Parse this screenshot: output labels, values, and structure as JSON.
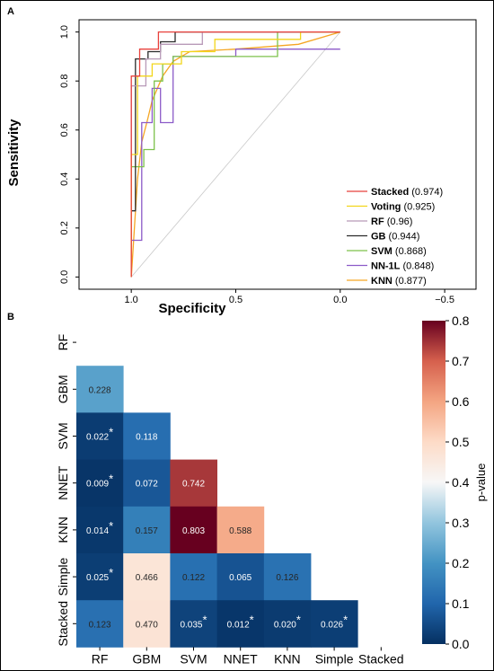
{
  "chart_data": [
    {
      "type": "line",
      "panel": "A",
      "xlabel": "Specificity",
      "ylabel": "Sensitivity",
      "xlim": [
        1.25,
        -0.65
      ],
      "ylim": [
        -0.05,
        1.05
      ],
      "x_ticks": [
        {
          "value": 1.0,
          "label": "1.0"
        },
        {
          "value": 0.5,
          "label": "0.5"
        },
        {
          "value": 0.0,
          "label": "0.0"
        },
        {
          "value": -0.5,
          "label": "−0.5"
        }
      ],
      "y_ticks": [
        {
          "value": 0.0,
          "label": "0.0"
        },
        {
          "value": 0.2,
          "label": "0.2"
        },
        {
          "value": 0.4,
          "label": "0.4"
        },
        {
          "value": 0.6,
          "label": "0.6"
        },
        {
          "value": 0.8,
          "label": "0.8"
        },
        {
          "value": 1.0,
          "label": "1.0"
        }
      ],
      "reference_line": {
        "x": [
          1.0,
          0.0
        ],
        "y": [
          0.0,
          1.0
        ],
        "color": "#c8c8c8"
      },
      "legend_position": "bottom-right",
      "series": [
        {
          "name": "Stacked",
          "auc": "(0.974)",
          "color": "#e8413c",
          "x": [
            1,
            1,
            0.96,
            0.96,
            0.87,
            0.87,
            0.8,
            0.8,
            0
          ],
          "y": [
            0,
            0.82,
            0.82,
            0.93,
            0.93,
            1,
            1,
            1,
            1
          ]
        },
        {
          "name": "Voting",
          "auc": "(0.925)",
          "color": "#f2d61b",
          "x": [
            1,
            1,
            0.97,
            0.97,
            0.9,
            0.9,
            0.76,
            0.76,
            0.6,
            0.6,
            0.19,
            0.19,
            0
          ],
          "y": [
            0,
            0.5,
            0.5,
            0.82,
            0.82,
            0.87,
            0.87,
            0.92,
            0.92,
            0.97,
            0.97,
            1,
            1
          ]
        },
        {
          "name": "RF",
          "auc": "(0.96)",
          "color": "#b89ab8",
          "x": [
            1,
            1,
            0.93,
            0.93,
            0.86,
            0.86,
            0.66,
            0.66,
            0
          ],
          "y": [
            0,
            0.78,
            0.78,
            0.89,
            0.89,
            0.95,
            0.95,
            1,
            1
          ]
        },
        {
          "name": "GB",
          "auc": "(0.944)",
          "color": "#2b2b2b",
          "x": [
            1,
            1,
            0.98,
            0.98,
            0.92,
            0.92,
            0.86,
            0.86,
            0.79,
            0.79,
            0
          ],
          "y": [
            0,
            0.27,
            0.27,
            0.89,
            0.89,
            0.92,
            0.92,
            0.96,
            0.96,
            1,
            1
          ]
        },
        {
          "name": "SVM",
          "auc": "(0.868)",
          "color": "#7dc24b",
          "x": [
            1,
            1,
            0.94,
            0.94,
            0.89,
            0.89,
            0.85,
            0.85,
            0.8,
            0.8,
            0.3,
            0.3,
            0
          ],
          "y": [
            0,
            0.45,
            0.45,
            0.52,
            0.52,
            0.8,
            0.8,
            0.87,
            0.87,
            0.9,
            0.9,
            1,
            1
          ]
        },
        {
          "name": "NN-1L",
          "auc": "(0.848)",
          "color": "#8c5ac8",
          "x": [
            1,
            1,
            0.95,
            0.95,
            0.9,
            0.9,
            0.86,
            0.86,
            0.8,
            0.8,
            0.5,
            0.5,
            0
          ],
          "y": [
            0,
            0.15,
            0.15,
            0.63,
            0.63,
            0.77,
            0.77,
            0.63,
            0.63,
            0.9,
            0.9,
            0.93,
            0.93
          ]
        },
        {
          "name": "KNN",
          "auc": "(0.877)",
          "color": "#f5a623",
          "x": [
            1,
            0.97,
            0.95,
            0.92,
            0.9,
            0.85,
            0.8,
            0.72,
            0.5,
            0.2,
            0
          ],
          "y": [
            0,
            0.4,
            0.55,
            0.65,
            0.72,
            0.82,
            0.88,
            0.92,
            0.93,
            0.95,
            1
          ]
        }
      ]
    },
    {
      "type": "heatmap",
      "panel": "B",
      "row_labels": [
        "RF",
        "GBM",
        "SVM",
        "NNET",
        "KNN",
        "Simple",
        "Stacked"
      ],
      "col_labels": [
        "RF",
        "GBM",
        "SVM",
        "NNET",
        "KNN",
        "Simple",
        "Stacked"
      ],
      "cells": [
        {
          "row": 1,
          "col": 0,
          "value": 0.228,
          "label": "0.228",
          "sig": ""
        },
        {
          "row": 2,
          "col": 0,
          "value": 0.022,
          "label": "0.022",
          "sig": "*"
        },
        {
          "row": 2,
          "col": 1,
          "value": 0.118,
          "label": "0.118",
          "sig": ""
        },
        {
          "row": 3,
          "col": 0,
          "value": 0.009,
          "label": "0.009",
          "sig": "*"
        },
        {
          "row": 3,
          "col": 1,
          "value": 0.072,
          "label": "0.072",
          "sig": ""
        },
        {
          "row": 3,
          "col": 2,
          "value": 0.742,
          "label": "0.742",
          "sig": ""
        },
        {
          "row": 4,
          "col": 0,
          "value": 0.014,
          "label": "0.014",
          "sig": "*"
        },
        {
          "row": 4,
          "col": 1,
          "value": 0.157,
          "label": "0.157",
          "sig": ""
        },
        {
          "row": 4,
          "col": 2,
          "value": 0.803,
          "label": "0.803",
          "sig": ""
        },
        {
          "row": 4,
          "col": 3,
          "value": 0.588,
          "label": "0.588",
          "sig": ""
        },
        {
          "row": 5,
          "col": 0,
          "value": 0.025,
          "label": "0.025",
          "sig": "*"
        },
        {
          "row": 5,
          "col": 1,
          "value": 0.466,
          "label": "0.466",
          "sig": ""
        },
        {
          "row": 5,
          "col": 2,
          "value": 0.122,
          "label": "0.122",
          "sig": ""
        },
        {
          "row": 5,
          "col": 3,
          "value": 0.065,
          "label": "0.065",
          "sig": ""
        },
        {
          "row": 5,
          "col": 4,
          "value": 0.126,
          "label": "0.126",
          "sig": ""
        },
        {
          "row": 6,
          "col": 0,
          "value": 0.123,
          "label": "0.123",
          "sig": ""
        },
        {
          "row": 6,
          "col": 1,
          "value": 0.47,
          "label": "0.470",
          "sig": ""
        },
        {
          "row": 6,
          "col": 2,
          "value": 0.035,
          "label": "0.035",
          "sig": "*"
        },
        {
          "row": 6,
          "col": 3,
          "value": 0.012,
          "label": "0.012",
          "sig": "*"
        },
        {
          "row": 6,
          "col": 4,
          "value": 0.02,
          "label": "0.020",
          "sig": "*"
        },
        {
          "row": 6,
          "col": 5,
          "value": 0.026,
          "label": "0.026",
          "sig": "*"
        }
      ],
      "colorbar": {
        "label": "p-value",
        "range": [
          0.0,
          0.8
        ],
        "ticks": [
          "0.0",
          "0.1",
          "0.2",
          "0.3",
          "0.4",
          "0.5",
          "0.6",
          "0.7",
          "0.8"
        ],
        "colormap": "RdBu_r"
      }
    }
  ],
  "panel_labels": {
    "a": "A",
    "b": "B"
  }
}
